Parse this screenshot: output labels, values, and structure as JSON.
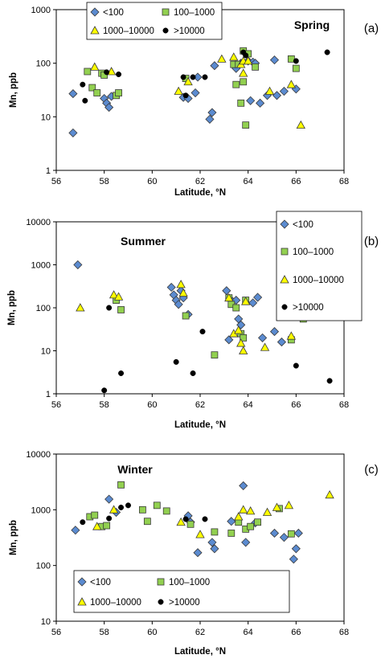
{
  "colors": {
    "lt100": "#5B8BD0",
    "b100_1000": "#92D050",
    "b1000_10000": "#FFFF00",
    "gt10000": "#000000",
    "stroke": "#3a3a3a"
  },
  "chart_data": [
    {
      "type": "scatter",
      "panel_label": "(a)",
      "title": "Spring",
      "xlabel": "Latitude, °N",
      "ylabel": "Mn, ppb",
      "xlim": [
        56,
        68
      ],
      "xticks": [
        "56",
        "58",
        "60",
        "62",
        "64",
        "66",
        "68"
      ],
      "ylim": [
        1,
        1000
      ],
      "yscale": "log",
      "yticks": [
        "1",
        "10",
        "100",
        "1000"
      ],
      "grid": false,
      "legend": {
        "placement": "top-left",
        "columns": 2
      },
      "series": [
        {
          "name": "<100",
          "marker": "diamond",
          "color": "lt100",
          "x": [
            56.7,
            56.7,
            58.0,
            58.1,
            58.2,
            58.3,
            61.3,
            61.5,
            61.8,
            61.9,
            62.4,
            62.5,
            62.6,
            63.5,
            63.7,
            64.0,
            64.1,
            64.2,
            64.3,
            64.5,
            64.8,
            65.1,
            65.2,
            65.5,
            66.0
          ],
          "y": [
            27,
            5,
            22,
            18,
            15,
            24,
            23,
            22,
            28,
            55,
            9,
            12,
            90,
            80,
            100,
            110,
            20,
            105,
            100,
            18,
            25,
            115,
            25,
            30,
            33
          ]
        },
        {
          "name": "100–1000",
          "marker": "square",
          "color": "b100_1000",
          "x": [
            57.3,
            57.5,
            57.7,
            57.9,
            58.0,
            58.5,
            58.6,
            61.4,
            63.4,
            63.5,
            63.6,
            63.7,
            63.8,
            63.8,
            63.9,
            64.0,
            64.3,
            65.8,
            66.0
          ],
          "y": [
            70,
            35,
            28,
            65,
            60,
            25,
            28,
            52,
            95,
            40,
            95,
            18,
            170,
            45,
            7,
            150,
            85,
            120,
            80
          ]
        },
        {
          "name": "1000–10000",
          "marker": "triangle",
          "color": "b1000_10000",
          "x": [
            57.6,
            58.3,
            61.1,
            61.5,
            62.9,
            63.4,
            63.7,
            63.8,
            63.8,
            64.0,
            64.9,
            65.8,
            66.2
          ],
          "y": [
            85,
            70,
            30,
            45,
            120,
            130,
            95,
            110,
            65,
            110,
            30,
            40,
            7
          ]
        },
        {
          "name": ">10000",
          "marker": "circle",
          "color": "gt10000",
          "x": [
            57.1,
            57.2,
            58.1,
            58.6,
            61.3,
            61.4,
            61.7,
            62.2,
            63.8,
            63.9,
            66.0,
            67.3
          ],
          "y": [
            40,
            20,
            68,
            62,
            55,
            25,
            55,
            55,
            160,
            140,
            110,
            160
          ]
        }
      ]
    },
    {
      "type": "scatter",
      "panel_label": "(b)",
      "title": "Summer",
      "xlabel": "Latitude, °N",
      "ylabel": "Mn, ppb",
      "xlim": [
        56,
        68
      ],
      "xticks": [
        "56",
        "58",
        "60",
        "62",
        "64",
        "66",
        "68"
      ],
      "ylim": [
        1,
        10000
      ],
      "yscale": "log",
      "yticks": [
        "1",
        "10",
        "100",
        "1000",
        "10000"
      ],
      "grid": false,
      "legend": {
        "placement": "top-right",
        "columns": 1
      },
      "series": [
        {
          "name": "<100",
          "marker": "diamond",
          "color": "lt100",
          "x": [
            56.9,
            60.8,
            60.9,
            61.0,
            61.1,
            61.2,
            61.3,
            61.5,
            63.1,
            63.2,
            63.3,
            63.5,
            63.6,
            63.7,
            64.2,
            64.4,
            64.6,
            65.1,
            65.4
          ],
          "y": [
            1000,
            300,
            200,
            150,
            120,
            250,
            170,
            70,
            250,
            18,
            150,
            150,
            55,
            40,
            130,
            175,
            20,
            28,
            16
          ]
        },
        {
          "name": "100–1000",
          "marker": "square",
          "color": "b100_1000",
          "x": [
            58.5,
            58.7,
            61.4,
            62.6,
            63.2,
            63.3,
            63.5,
            63.7,
            63.8,
            63.9,
            65.8,
            66.0,
            66.3,
            67.0,
            67.2
          ],
          "y": [
            150,
            90,
            65,
            8,
            170,
            120,
            100,
            25,
            20,
            150,
            18,
            105,
            55,
            115,
            105
          ]
        },
        {
          "name": "1000–10000",
          "marker": "triangle",
          "color": "b1000_10000",
          "x": [
            57.0,
            58.4,
            58.6,
            61.2,
            61.3,
            63.2,
            63.4,
            63.6,
            63.7,
            63.8,
            63.9,
            64.7,
            65.8
          ],
          "y": [
            100,
            200,
            180,
            350,
            220,
            170,
            25,
            30,
            15,
            10,
            140,
            12,
            22
          ]
        },
        {
          "name": ">10000",
          "marker": "circle",
          "color": "gt10000",
          "x": [
            58.0,
            58.2,
            58.7,
            61.0,
            61.7,
            62.1,
            66.0,
            67.4
          ],
          "y": [
            1.2,
            100,
            3,
            5.5,
            3,
            28,
            4.5,
            2
          ]
        }
      ]
    },
    {
      "type": "scatter",
      "panel_label": "(c)",
      "title": "Winter",
      "xlabel": "Latitude, °N",
      "ylabel": "Mn, ppb",
      "xlim": [
        56,
        68
      ],
      "xticks": [
        "56",
        "58",
        "60",
        "62",
        "64",
        "66",
        "68"
      ],
      "ylim": [
        10,
        10000
      ],
      "yscale": "log",
      "yticks": [
        "10",
        "100",
        "1000",
        "10000"
      ],
      "grid": false,
      "legend": {
        "placement": "bottom-left",
        "columns": 3
      },
      "series": [
        {
          "name": "<100",
          "marker": "diamond",
          "color": "lt100",
          "x": [
            56.8,
            58.2,
            58.5,
            61.5,
            61.6,
            61.9,
            62.5,
            62.6,
            63.3,
            63.8,
            63.9,
            64.3,
            64.6,
            65.1,
            65.5,
            65.9,
            66.0,
            66.1
          ],
          "y": [
            430,
            1550,
            900,
            780,
            600,
            170,
            260,
            200,
            620,
            2700,
            260,
            580,
            60,
            380,
            320,
            130,
            200,
            380
          ]
        },
        {
          "name": "100–1000",
          "marker": "square",
          "color": "b100_1000",
          "x": [
            57.4,
            57.6,
            57.9,
            58.1,
            58.7,
            59.6,
            59.8,
            60.2,
            60.6,
            61.6,
            62.6,
            63.3,
            63.6,
            63.9,
            64.1,
            64.4,
            65.3,
            65.8
          ],
          "y": [
            750,
            800,
            500,
            520,
            2800,
            1000,
            620,
            1200,
            950,
            550,
            400,
            380,
            600,
            450,
            500,
            600,
            1050,
            370
          ]
        },
        {
          "name": "1000–10000",
          "marker": "triangle",
          "color": "b1000_10000",
          "x": [
            57.7,
            58.4,
            61.2,
            62.0,
            63.6,
            63.8,
            64.1,
            64.8,
            65.2,
            65.7,
            67.4
          ],
          "y": [
            500,
            1000,
            600,
            360,
            750,
            1000,
            950,
            900,
            1100,
            1200,
            1850
          ]
        },
        {
          "name": ">10000",
          "marker": "circle",
          "color": "gt10000",
          "x": [
            57.1,
            58.2,
            58.7,
            59.0,
            61.4,
            62.2
          ],
          "y": [
            600,
            700,
            1100,
            1200,
            680,
            680
          ]
        }
      ]
    }
  ]
}
